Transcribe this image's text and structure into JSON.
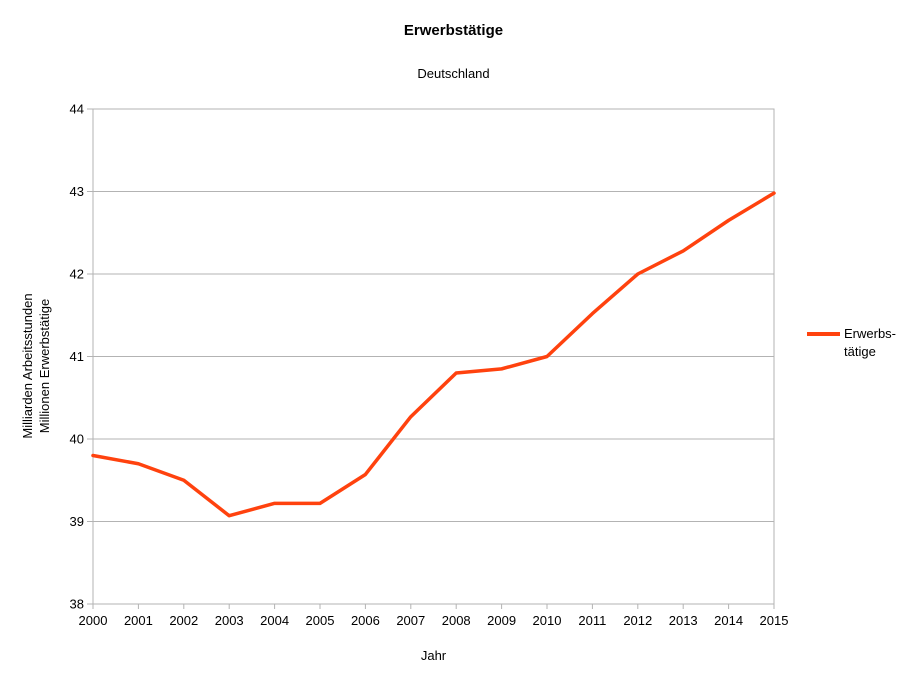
{
  "chart_data": {
    "type": "line",
    "title": "Erwerbstätige",
    "subtitle": "Deutschland",
    "xlabel": "Jahr",
    "ylabel_lines": [
      "Milliarden Arbeitsstunden",
      "Millionen Erwerbstätige"
    ],
    "categories": [
      "2000",
      "2001",
      "2002",
      "2003",
      "2004",
      "2005",
      "2006",
      "2007",
      "2008",
      "2009",
      "2010",
      "2011",
      "2012",
      "2013",
      "2014",
      "2015"
    ],
    "series": [
      {
        "name": "Erwerbstätige",
        "color": "#ff420e",
        "values": [
          39.8,
          39.7,
          39.5,
          39.07,
          39.22,
          39.22,
          39.57,
          40.27,
          40.8,
          40.85,
          41.0,
          41.52,
          42.0,
          42.28,
          42.65,
          42.98
        ]
      }
    ],
    "ylim": [
      38,
      44
    ],
    "ytick_step": 1,
    "grid": "horizontal",
    "grid_color": "#b3b3b3",
    "legend_position": "right"
  },
  "legend": {
    "lines": [
      "Erwerbs-",
      "tätige"
    ]
  }
}
